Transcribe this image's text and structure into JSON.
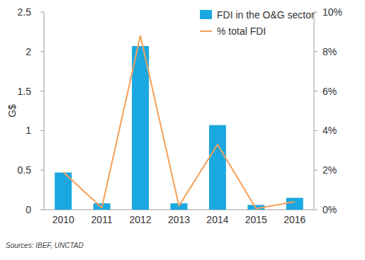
{
  "chart_data": {
    "type": "bar",
    "y_label": "G$",
    "source": "Sources: IBEF, UNCTAD",
    "categories": [
      "2010",
      "2011",
      "2012",
      "2013",
      "2014",
      "2015",
      "2016"
    ],
    "series": [
      {
        "name": "FDI in the O&G sector",
        "type": "bar",
        "color": "#1ba8e0",
        "values": [
          0.47,
          0.08,
          2.07,
          0.08,
          1.07,
          0.06,
          0.15
        ]
      },
      {
        "name": "% total FDI",
        "type": "line",
        "axis": "y2",
        "color": "#f5a05a",
        "values": [
          1.9,
          0.1,
          8.8,
          0.2,
          3.3,
          0.05,
          0.4
        ]
      }
    ],
    "ylim": [
      0,
      2.5
    ],
    "yticks": [
      0,
      0.5,
      1,
      1.5,
      2,
      2.5
    ],
    "y2lim": [
      0,
      10
    ],
    "y2ticks": [
      {
        "value": 0,
        "label": "0%"
      },
      {
        "value": 2,
        "label": "2%"
      },
      {
        "value": 4,
        "label": "4%"
      },
      {
        "value": 6,
        "label": "6%"
      },
      {
        "value": 8,
        "label": "8%"
      },
      {
        "value": 10,
        "label": "10%"
      }
    ],
    "legend": "top-right",
    "grid": false
  }
}
